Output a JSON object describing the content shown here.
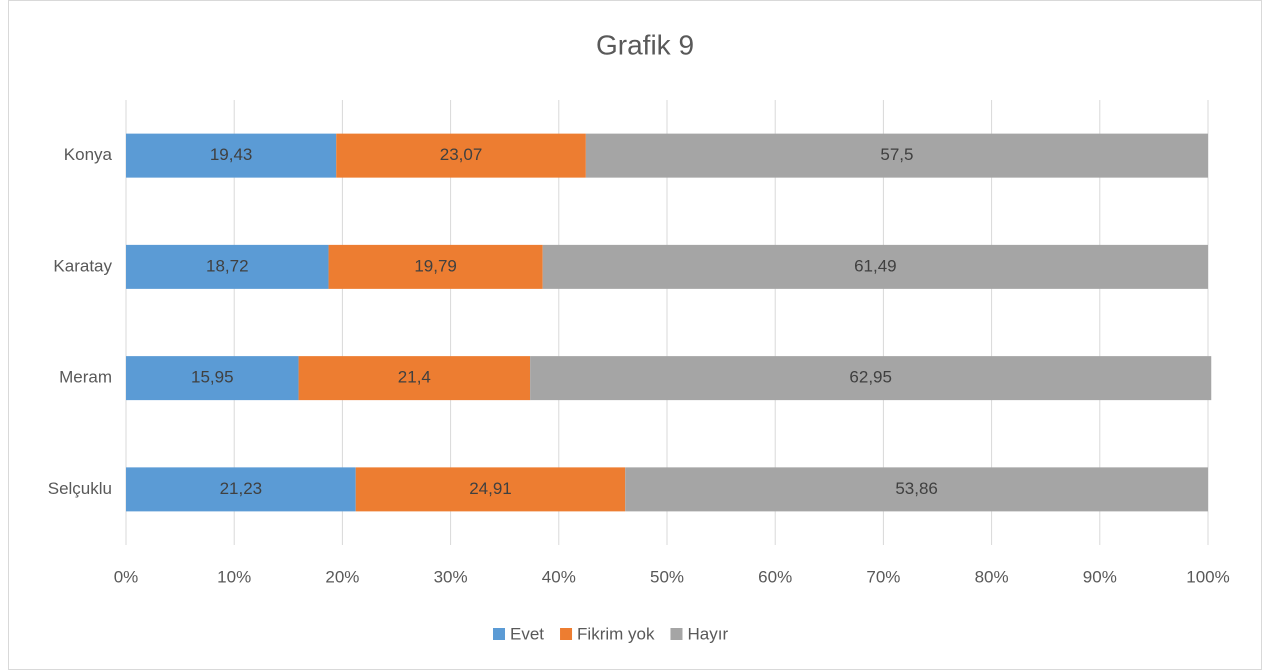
{
  "chart_data": {
    "type": "stacked-bar-horizontal",
    "title": "Grafik 9",
    "categories": [
      "Konya",
      "Karatay",
      "Meram",
      "Selçuklu"
    ],
    "series": [
      {
        "name": "Evet",
        "color": "#5b9bd5",
        "values": [
          19.43,
          18.72,
          15.95,
          21.23
        ],
        "value_labels": [
          "19,43",
          "18,72",
          "15,95",
          "21,23"
        ]
      },
      {
        "name": "Fikrim yok",
        "color": "#ed7d31",
        "values": [
          23.07,
          19.79,
          21.4,
          24.91
        ],
        "value_labels": [
          "23,07",
          "19,79",
          "21,4",
          "24,91"
        ]
      },
      {
        "name": "Hayır",
        "color": "#a5a5a5",
        "values": [
          57.5,
          61.49,
          62.95,
          53.86
        ],
        "value_labels": [
          "57,5",
          "61,49",
          "62,95",
          "53,86"
        ]
      }
    ],
    "xlim": [
      0,
      100
    ],
    "xticks": [
      {
        "value": 0,
        "label": "0%"
      },
      {
        "value": 10,
        "label": "10%"
      },
      {
        "value": 20,
        "label": "20%"
      },
      {
        "value": 30,
        "label": "30%"
      },
      {
        "value": 40,
        "label": "40%"
      },
      {
        "value": 50,
        "label": "50%"
      },
      {
        "value": 60,
        "label": "60%"
      },
      {
        "value": 70,
        "label": "70%"
      },
      {
        "value": 80,
        "label": "80%"
      },
      {
        "value": 90,
        "label": "90%"
      },
      {
        "value": 100,
        "label": "100%"
      }
    ],
    "grid": true,
    "legend": "bottom"
  }
}
